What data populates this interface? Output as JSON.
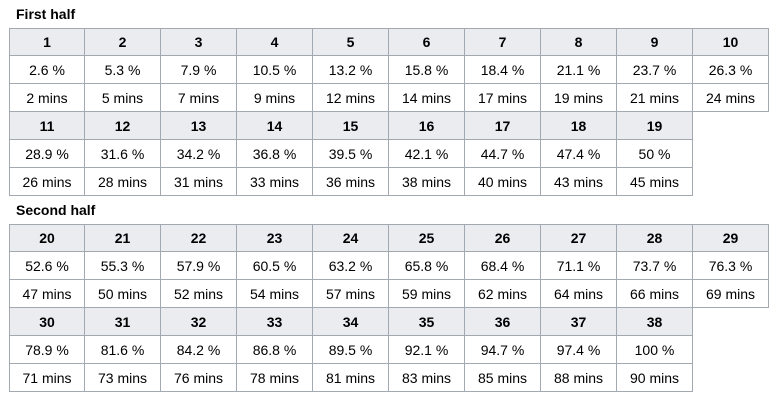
{
  "sections": [
    {
      "title": "First half",
      "rows": [
        {
          "numbers": [
            "1",
            "2",
            "3",
            "4",
            "5",
            "6",
            "7",
            "8",
            "9",
            "10"
          ],
          "percents": [
            "2.6 %",
            "5.3 %",
            "7.9 %",
            "10.5 %",
            "13.2 %",
            "15.8 %",
            "18.4 %",
            "21.1 %",
            "23.7 %",
            "26.3 %"
          ],
          "minutes": [
            "2 mins",
            "5 mins",
            "7 mins",
            "9 mins",
            "12 mins",
            "14 mins",
            "17 mins",
            "19 mins",
            "21 mins",
            "24 mins"
          ]
        },
        {
          "numbers": [
            "11",
            "12",
            "13",
            "14",
            "15",
            "16",
            "17",
            "18",
            "19"
          ],
          "percents": [
            "28.9 %",
            "31.6 %",
            "34.2 %",
            "36.8 %",
            "39.5 %",
            "42.1 %",
            "44.7 %",
            "47.4 %",
            "50 %"
          ],
          "minutes": [
            "26 mins",
            "28 mins",
            "31 mins",
            "33 mins",
            "36 mins",
            "38 mins",
            "40 mins",
            "43 mins",
            "45 mins"
          ]
        }
      ]
    },
    {
      "title": "Second half",
      "rows": [
        {
          "numbers": [
            "20",
            "21",
            "22",
            "23",
            "24",
            "25",
            "26",
            "27",
            "28",
            "29"
          ],
          "percents": [
            "52.6 %",
            "55.3 %",
            "57.9 %",
            "60.5 %",
            "63.2 %",
            "65.8 %",
            "68.4 %",
            "71.1 %",
            "73.7 %",
            "76.3 %"
          ],
          "minutes": [
            "47 mins",
            "50 mins",
            "52 mins",
            "54 mins",
            "57 mins",
            "59 mins",
            "62 mins",
            "64 mins",
            "66 mins",
            "69 mins"
          ]
        },
        {
          "numbers": [
            "30",
            "31",
            "32",
            "33",
            "34",
            "35",
            "36",
            "37",
            "38"
          ],
          "percents": [
            "78.9 %",
            "81.6 %",
            "84.2 %",
            "86.8 %",
            "89.5 %",
            "92.1 %",
            "94.7 %",
            "97.4 %",
            "100 %"
          ],
          "minutes": [
            "71 mins",
            "73 mins",
            "76 mins",
            "78 mins",
            "81 mins",
            "83 mins",
            "85 mins",
            "88 mins",
            "90 mins"
          ]
        }
      ]
    }
  ]
}
